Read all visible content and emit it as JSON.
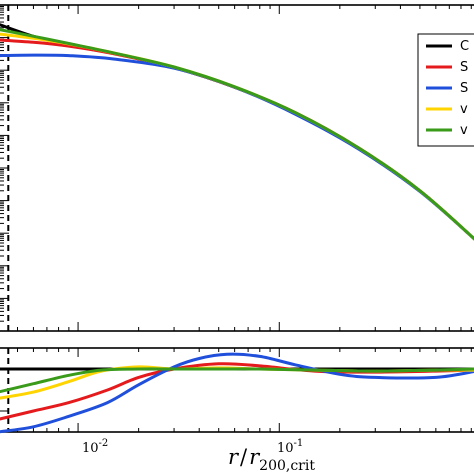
{
  "chart_data": [
    {
      "type": "line",
      "panel": "main",
      "xscale": "log",
      "yscale": "log",
      "xlim": [
        0.004,
        0.95
      ],
      "ylim": [
        1e-07,
        1000
      ],
      "xlabel": "r / r_200,crit",
      "xlabel_parts": {
        "italic": "r",
        "slash": "/",
        "base": "r",
        "sub": "200,crit"
      },
      "ylabel": "",
      "title": "",
      "xticks": [
        {
          "value": 0.01,
          "base": "10",
          "exp": "-2"
        },
        {
          "value": 0.1,
          "base": "10",
          "exp": "-1"
        }
      ],
      "vline": {
        "x": 0.0045,
        "style": "dashed"
      },
      "legend": {
        "position": "top-right",
        "entries": [
          "C",
          "S",
          "S",
          "v",
          "v"
        ]
      },
      "series": [
        {
          "legend_label": "C",
          "color": "#000000",
          "x": [
            0.004,
            0.006,
            0.009,
            0.015,
            0.03,
            0.06,
            0.12,
            0.25,
            0.5,
            0.95
          ],
          "y": [
            260,
            110,
            60,
            33,
            12,
            3,
            0.5,
            0.04,
            0.002,
            6e-05
          ]
        },
        {
          "legend_label": "S",
          "color": "#e41a1c",
          "x": [
            0.004,
            0.006,
            0.009,
            0.015,
            0.03,
            0.06,
            0.12,
            0.25,
            0.5,
            0.95
          ],
          "y": [
            85,
            72,
            55,
            32,
            12,
            3,
            0.5,
            0.04,
            0.002,
            6e-05
          ]
        },
        {
          "legend_label": "S",
          "color": "#1f4fdb",
          "x": [
            0.004,
            0.006,
            0.009,
            0.015,
            0.03,
            0.06,
            0.12,
            0.25,
            0.5,
            0.95
          ],
          "y": [
            28,
            29,
            28,
            22,
            11.5,
            3,
            0.45,
            0.037,
            0.0019,
            6e-05
          ]
        },
        {
          "legend_label": "v",
          "color": "#ffd400",
          "x": [
            0.004,
            0.006,
            0.009,
            0.015,
            0.03,
            0.06,
            0.12,
            0.25,
            0.5,
            0.95
          ],
          "y": [
            130,
            95,
            64,
            34,
            12.5,
            3.1,
            0.5,
            0.04,
            0.002,
            6e-05
          ]
        },
        {
          "legend_label": "v",
          "color": "#3a9a1a",
          "x": [
            0.004,
            0.006,
            0.009,
            0.015,
            0.03,
            0.06,
            0.12,
            0.25,
            0.5,
            0.95
          ],
          "y": [
            180,
            110,
            66,
            34,
            12.5,
            3.1,
            0.5,
            0.04,
            0.002,
            6e-05
          ]
        }
      ]
    },
    {
      "type": "line",
      "panel": "residual",
      "xscale": "log",
      "xlim": [
        0.004,
        0.95
      ],
      "ylim": [
        -0.6,
        0.2
      ],
      "ylabel": "",
      "hline": {
        "y": 0
      },
      "series": [
        {
          "legend_label": "C",
          "color": "#000000",
          "x": [
            0.004,
            0.95
          ],
          "y": [
            0,
            0
          ]
        },
        {
          "legend_label": "S",
          "color": "#e41a1c",
          "x": [
            0.004,
            0.006,
            0.009,
            0.014,
            0.02,
            0.03,
            0.05,
            0.08,
            0.15,
            0.3,
            0.6,
            0.95
          ],
          "y": [
            -0.48,
            -0.4,
            -0.32,
            -0.2,
            -0.08,
            0.0,
            0.05,
            0.03,
            -0.02,
            -0.03,
            -0.02,
            -0.01
          ]
        },
        {
          "legend_label": "S",
          "color": "#1f4fdb",
          "x": [
            0.004,
            0.006,
            0.009,
            0.014,
            0.02,
            0.03,
            0.04,
            0.055,
            0.08,
            0.12,
            0.2,
            0.3,
            0.6,
            0.95
          ],
          "y": [
            -0.6,
            -0.55,
            -0.45,
            -0.32,
            -0.15,
            0.02,
            0.1,
            0.14,
            0.12,
            0.04,
            -0.05,
            -0.08,
            -0.08,
            -0.02
          ]
        },
        {
          "legend_label": "v",
          "color": "#ffd400",
          "x": [
            0.004,
            0.006,
            0.009,
            0.013,
            0.02,
            0.03,
            0.05,
            0.08,
            0.15,
            0.3,
            0.6,
            0.95
          ],
          "y": [
            -0.28,
            -0.22,
            -0.12,
            -0.02,
            0.02,
            0.0,
            0.01,
            0.0,
            -0.01,
            -0.02,
            -0.01,
            -0.01
          ]
        },
        {
          "legend_label": "v",
          "color": "#3a9a1a",
          "x": [
            0.004,
            0.006,
            0.009,
            0.013,
            0.02,
            0.03,
            0.05,
            0.08,
            0.15,
            0.3,
            0.6,
            0.95
          ],
          "y": [
            -0.22,
            -0.14,
            -0.06,
            -0.01,
            0.0,
            0.0,
            0.0,
            0.0,
            -0.01,
            -0.02,
            -0.01,
            0.0
          ]
        }
      ]
    }
  ]
}
